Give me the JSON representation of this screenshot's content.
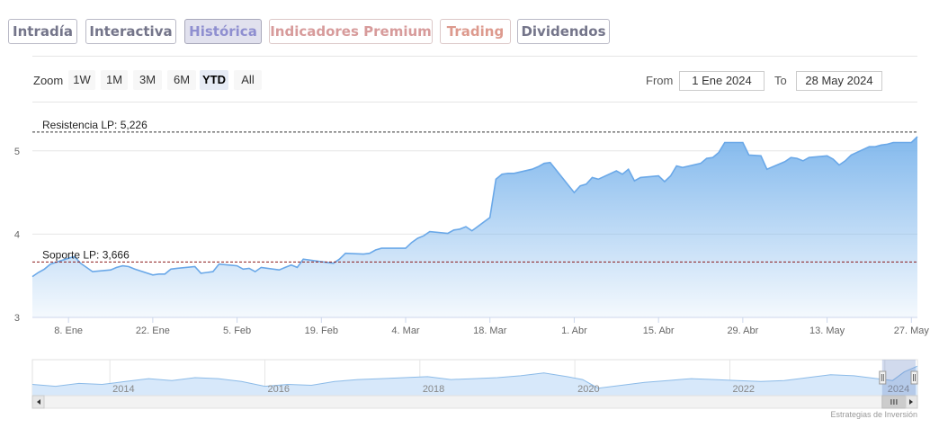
{
  "tabs": [
    {
      "label": "Intradía",
      "state": "normal"
    },
    {
      "label": "Interactiva",
      "state": "normal"
    },
    {
      "label": "Histórica",
      "state": "active"
    },
    {
      "label": "Indicadores Premium",
      "state": "premium"
    },
    {
      "label": "Trading",
      "state": "trading"
    },
    {
      "label": "Dividendos",
      "state": "normal"
    }
  ],
  "range_selector": {
    "zoom_label": "Zoom",
    "buttons": [
      "1W",
      "1M",
      "3M",
      "6M",
      "YTD",
      "All"
    ],
    "selected": "YTD",
    "from_label": "From",
    "from_value": "1 Ene 2024",
    "to_label": "To",
    "to_value": "28 May 2024"
  },
  "credit": "Estrategias de Inversión",
  "colors": {
    "series": "#7cb5ec",
    "resistance": "#333333",
    "support": "#8b1a1a"
  },
  "chart_data": {
    "type": "area",
    "title": "",
    "xlabel": "",
    "ylabel": "",
    "x_range": [
      "2024-01-02",
      "2024-05-28"
    ],
    "ylim": [
      3,
      5.3
    ],
    "y_ticks": [
      3,
      4,
      5
    ],
    "x_tick_labels": [
      "8. Ene",
      "22. Ene",
      "5. Feb",
      "19. Feb",
      "4. Mar",
      "18. Mar",
      "1. Abr",
      "15. Abr",
      "29. Abr",
      "13. May",
      "27. May"
    ],
    "x_tick_dates": [
      "2024-01-08",
      "2024-01-22",
      "2024-02-05",
      "2024-02-19",
      "2024-03-04",
      "2024-03-18",
      "2024-04-01",
      "2024-04-15",
      "2024-04-29",
      "2024-05-13",
      "2024-05-27"
    ],
    "series": [
      {
        "points": [
          [
            "2024-01-02",
            3.49
          ],
          [
            "2024-01-03",
            3.54
          ],
          [
            "2024-01-04",
            3.58
          ],
          [
            "2024-01-05",
            3.64
          ],
          [
            "2024-01-08",
            3.71
          ],
          [
            "2024-01-09",
            3.73
          ],
          [
            "2024-01-10",
            3.65
          ],
          [
            "2024-01-11",
            3.6
          ],
          [
            "2024-01-12",
            3.55
          ],
          [
            "2024-01-15",
            3.57
          ],
          [
            "2024-01-16",
            3.6
          ],
          [
            "2024-01-17",
            3.62
          ],
          [
            "2024-01-18",
            3.61
          ],
          [
            "2024-01-19",
            3.58
          ],
          [
            "2024-01-22",
            3.51
          ],
          [
            "2024-01-23",
            3.52
          ],
          [
            "2024-01-24",
            3.52
          ],
          [
            "2024-01-25",
            3.58
          ],
          [
            "2024-01-26",
            3.59
          ],
          [
            "2024-01-29",
            3.61
          ],
          [
            "2024-01-30",
            3.53
          ],
          [
            "2024-01-31",
            3.54
          ],
          [
            "2024-02-01",
            3.55
          ],
          [
            "2024-02-02",
            3.64
          ],
          [
            "2024-02-05",
            3.62
          ],
          [
            "2024-02-06",
            3.58
          ],
          [
            "2024-02-07",
            3.59
          ],
          [
            "2024-02-08",
            3.55
          ],
          [
            "2024-02-09",
            3.6
          ],
          [
            "2024-02-12",
            3.57
          ],
          [
            "2024-02-13",
            3.6
          ],
          [
            "2024-02-14",
            3.63
          ],
          [
            "2024-02-15",
            3.6
          ],
          [
            "2024-02-16",
            3.7
          ],
          [
            "2024-02-19",
            3.67
          ],
          [
            "2024-02-20",
            3.66
          ],
          [
            "2024-02-21",
            3.65
          ],
          [
            "2024-02-22",
            3.7
          ],
          [
            "2024-02-23",
            3.77
          ],
          [
            "2024-02-26",
            3.76
          ],
          [
            "2024-02-27",
            3.77
          ],
          [
            "2024-02-28",
            3.81
          ],
          [
            "2024-02-29",
            3.83
          ],
          [
            "2024-03-01",
            3.83
          ],
          [
            "2024-03-04",
            3.83
          ],
          [
            "2024-03-05",
            3.9
          ],
          [
            "2024-03-06",
            3.95
          ],
          [
            "2024-03-07",
            3.98
          ],
          [
            "2024-03-08",
            4.03
          ],
          [
            "2024-03-11",
            4.01
          ],
          [
            "2024-03-12",
            4.05
          ],
          [
            "2024-03-13",
            4.06
          ],
          [
            "2024-03-14",
            4.09
          ],
          [
            "2024-03-15",
            4.04
          ],
          [
            "2024-03-18",
            4.2
          ],
          [
            "2024-03-19",
            4.66
          ],
          [
            "2024-03-20",
            4.72
          ],
          [
            "2024-03-21",
            4.73
          ],
          [
            "2024-03-22",
            4.73
          ],
          [
            "2024-03-25",
            4.78
          ],
          [
            "2024-03-26",
            4.81
          ],
          [
            "2024-03-27",
            4.85
          ],
          [
            "2024-03-28",
            4.86
          ],
          [
            "2024-04-01",
            4.5
          ],
          [
            "2024-04-02",
            4.58
          ],
          [
            "2024-04-03",
            4.6
          ],
          [
            "2024-04-04",
            4.68
          ],
          [
            "2024-04-05",
            4.66
          ],
          [
            "2024-04-08",
            4.76
          ],
          [
            "2024-04-09",
            4.72
          ],
          [
            "2024-04-10",
            4.78
          ],
          [
            "2024-04-11",
            4.64
          ],
          [
            "2024-04-12",
            4.68
          ],
          [
            "2024-04-15",
            4.7
          ],
          [
            "2024-04-16",
            4.63
          ],
          [
            "2024-04-17",
            4.7
          ],
          [
            "2024-04-18",
            4.82
          ],
          [
            "2024-04-19",
            4.8
          ],
          [
            "2024-04-22",
            4.85
          ],
          [
            "2024-04-23",
            4.91
          ],
          [
            "2024-04-24",
            4.92
          ],
          [
            "2024-04-25",
            4.98
          ],
          [
            "2024-04-26",
            5.1
          ],
          [
            "2024-04-29",
            5.1
          ],
          [
            "2024-04-30",
            4.95
          ],
          [
            "2024-05-02",
            4.94
          ],
          [
            "2024-05-03",
            4.78
          ],
          [
            "2024-05-06",
            4.87
          ],
          [
            "2024-05-07",
            4.92
          ],
          [
            "2024-05-08",
            4.91
          ],
          [
            "2024-05-09",
            4.88
          ],
          [
            "2024-05-10",
            4.92
          ],
          [
            "2024-05-13",
            4.94
          ],
          [
            "2024-05-14",
            4.9
          ],
          [
            "2024-05-15",
            4.83
          ],
          [
            "2024-05-16",
            4.88
          ],
          [
            "2024-05-17",
            4.95
          ],
          [
            "2024-05-20",
            5.05
          ],
          [
            "2024-05-21",
            5.05
          ],
          [
            "2024-05-22",
            5.07
          ],
          [
            "2024-05-23",
            5.08
          ],
          [
            "2024-05-24",
            5.1
          ],
          [
            "2024-05-27",
            5.1
          ],
          [
            "2024-05-28",
            5.17
          ]
        ]
      }
    ],
    "plot_lines": [
      {
        "label": "Resistencia LP: 5,226",
        "value": 5.226,
        "style": "dashed"
      },
      {
        "label": "Soporte LP: 3,666",
        "value": 3.666,
        "style": "dashed"
      }
    ],
    "navigator": {
      "year_labels": [
        "2014",
        "2016",
        "2018",
        "2020",
        "2022",
        "2024"
      ],
      "year_values": [
        2014,
        2016,
        2018,
        2020,
        2022,
        2024
      ],
      "x_range": [
        2013.0,
        2024.42
      ],
      "selection": [
        2024.0,
        2024.42
      ],
      "series": [
        [
          2013.0,
          3.3
        ],
        [
          2013.3,
          3.1
        ],
        [
          2013.6,
          3.4
        ],
        [
          2013.9,
          3.3
        ],
        [
          2014.2,
          3.6
        ],
        [
          2014.5,
          3.9
        ],
        [
          2014.8,
          3.7
        ],
        [
          2015.1,
          4.0
        ],
        [
          2015.4,
          3.9
        ],
        [
          2015.7,
          3.6
        ],
        [
          2016.0,
          3.1
        ],
        [
          2016.3,
          3.3
        ],
        [
          2016.6,
          3.2
        ],
        [
          2016.9,
          3.6
        ],
        [
          2017.2,
          3.8
        ],
        [
          2017.5,
          3.9
        ],
        [
          2017.8,
          4.0
        ],
        [
          2018.1,
          4.1
        ],
        [
          2018.4,
          3.8
        ],
        [
          2018.7,
          3.9
        ],
        [
          2019.0,
          4.0
        ],
        [
          2019.3,
          4.2
        ],
        [
          2019.6,
          4.5
        ],
        [
          2019.9,
          4.1
        ],
        [
          2020.1,
          3.8
        ],
        [
          2020.3,
          2.9
        ],
        [
          2020.6,
          3.2
        ],
        [
          2020.9,
          3.5
        ],
        [
          2021.2,
          3.7
        ],
        [
          2021.5,
          3.9
        ],
        [
          2021.8,
          3.8
        ],
        [
          2022.1,
          3.7
        ],
        [
          2022.4,
          3.6
        ],
        [
          2022.7,
          3.7
        ],
        [
          2023.0,
          4.0
        ],
        [
          2023.3,
          4.3
        ],
        [
          2023.6,
          4.2
        ],
        [
          2023.9,
          3.9
        ],
        [
          2024.1,
          3.7
        ],
        [
          2024.25,
          4.6
        ],
        [
          2024.42,
          5.2
        ]
      ]
    }
  }
}
